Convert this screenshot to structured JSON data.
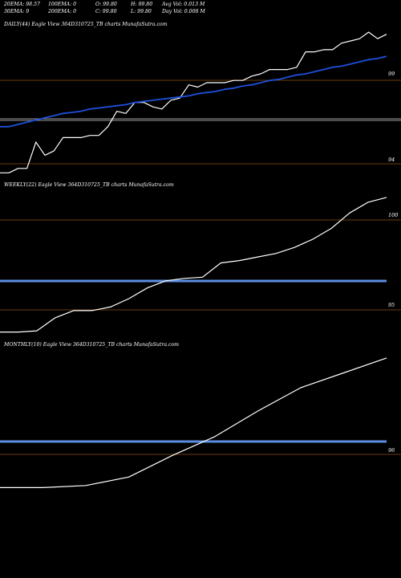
{
  "header": {
    "row1": [
      "20EMA: 98.57",
      "100EMA: 0",
      "O: 99.80",
      "H: 99.80",
      "Avg Vol: 0.013 M"
    ],
    "row2": [
      "30EMA: 9",
      "200EMA: 0",
      "C: 99.80",
      "L: 99.80",
      "Day Vol: 0.008 M"
    ]
  },
  "panels": {
    "daily": {
      "label": "DAILY(44) Eagle  View  364D310725_TB charts MunafaSutra.com"
    },
    "weekly": {
      "label": "WEEKLY(22) Eagle  View  364D310725_TB charts MunafaSutra.com"
    },
    "monthly": {
      "label": "MONTHLY(10) Eagle  View  364D310725_TB charts MunafaSutra.com"
    }
  },
  "colors": {
    "price": "#ffffff",
    "ema": "#1e50dc",
    "band": "#5b8ee0",
    "grid": "#6b3d10",
    "grid_gray": "#9a9a9a"
  },
  "chart_data": [
    {
      "type": "line",
      "x": [
        1,
        2,
        3,
        4,
        5,
        6,
        7,
        8,
        9,
        10,
        11,
        12,
        13,
        14,
        15,
        16,
        17,
        18,
        19,
        20,
        21,
        22,
        23,
        24,
        25,
        26,
        27,
        28,
        29,
        30,
        31,
        32,
        33,
        34,
        35,
        36,
        37,
        38,
        39,
        40,
        41,
        42,
        43,
        44
      ],
      "series": [
        {
          "values": [
            93.5,
            93.5,
            93.7,
            93.7,
            94.9,
            94.3,
            94.5,
            95.1,
            95.1,
            95.1,
            95.2,
            95.2,
            95.6,
            96.3,
            96.2,
            96.7,
            96.7,
            96.5,
            96.4,
            96.8,
            96.9,
            97.5,
            97.4,
            97.6,
            97.6,
            97.6,
            97.7,
            97.7,
            97.9,
            98.0,
            98.2,
            98.2,
            98.2,
            98.3,
            99.0,
            99.0,
            99.1,
            99.1,
            99.4,
            99.5,
            99.6,
            99.9,
            99.6,
            99.8
          ]
        },
        {
          "values": [
            95.6,
            95.6,
            95.7,
            95.8,
            95.9,
            96.0,
            96.1,
            96.2,
            96.25,
            96.3,
            96.4,
            96.45,
            96.5,
            96.55,
            96.6,
            96.7,
            96.75,
            96.8,
            96.85,
            96.9,
            96.95,
            97.0,
            97.1,
            97.15,
            97.2,
            97.3,
            97.35,
            97.45,
            97.5,
            97.6,
            97.7,
            97.75,
            97.85,
            97.95,
            98.0,
            98.1,
            98.2,
            98.3,
            98.35,
            98.45,
            98.55,
            98.65,
            98.7,
            98.8
          ]
        }
      ],
      "ticks": [
        99,
        94
      ],
      "ylim": [
        93.4,
        99.9
      ]
    },
    {
      "type": "line",
      "x": [
        1,
        2,
        3,
        4,
        5,
        6,
        7,
        8,
        9,
        10,
        11,
        12,
        13,
        14,
        15,
        16,
        17,
        18,
        19,
        20,
        21,
        22
      ],
      "series": [
        {
          "values": [
            93.5,
            93.5,
            93.6,
            94.7,
            95.3,
            95.3,
            95.6,
            96.3,
            97.2,
            97.8,
            98.0,
            98.1,
            99.3,
            99.5,
            99.8,
            100.1,
            100.6,
            101.3,
            102.2,
            103.5,
            104.4,
            104.8
          ]
        }
      ],
      "ticks": [
        100,
        95
      ],
      "ylim": [
        93.2,
        105.2
      ]
    },
    {
      "type": "line",
      "x": [
        1,
        2,
        3,
        4,
        5,
        6,
        7,
        8,
        9,
        10
      ],
      "series": [
        {
          "values": [
            93.5,
            93.5,
            93.6,
            94.0,
            95.0,
            95.9,
            97.1,
            98.2,
            98.9,
            99.6
          ]
        }
      ],
      "ticks": [
        96
      ],
      "ylim": [
        93.1,
        99.9
      ]
    }
  ]
}
